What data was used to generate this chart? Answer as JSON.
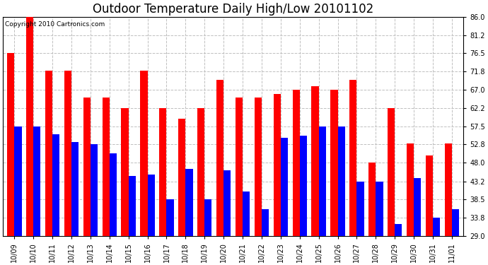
{
  "title": "Outdoor Temperature Daily High/Low 20101102",
  "copyright": "Copyright 2010 Cartronics.com",
  "dates": [
    "10/09",
    "10/10",
    "10/11",
    "10/12",
    "10/13",
    "10/14",
    "10/15",
    "10/16",
    "10/17",
    "10/18",
    "10/19",
    "10/20",
    "10/21",
    "10/22",
    "10/23",
    "10/24",
    "10/25",
    "10/26",
    "10/27",
    "10/28",
    "10/29",
    "10/30",
    "10/31",
    "11/01"
  ],
  "highs": [
    76.5,
    86.0,
    72.0,
    72.0,
    65.0,
    65.0,
    62.2,
    72.0,
    62.2,
    59.5,
    62.2,
    69.5,
    65.0,
    65.0,
    66.0,
    67.0,
    68.0,
    67.0,
    69.5,
    48.0,
    62.2,
    53.0,
    50.0,
    53.0
  ],
  "lows": [
    57.5,
    57.5,
    55.5,
    53.5,
    52.8,
    50.5,
    44.5,
    45.0,
    38.5,
    46.5,
    38.5,
    46.0,
    40.5,
    36.0,
    54.5,
    55.0,
    57.5,
    57.5,
    43.2,
    43.2,
    32.0,
    44.0,
    33.8,
    36.0
  ],
  "high_color": "#ff0000",
  "low_color": "#0000ff",
  "bg_color": "#ffffff",
  "plot_bg_color": "#ffffff",
  "grid_color": "#c0c0c0",
  "yticks": [
    29.0,
    33.8,
    38.5,
    43.2,
    48.0,
    52.8,
    57.5,
    62.2,
    67.0,
    71.8,
    76.5,
    81.2,
    86.0
  ],
  "ymin": 29.0,
  "ymax": 86.0,
  "title_fontsize": 12,
  "tick_fontsize": 7,
  "bar_width": 0.38
}
